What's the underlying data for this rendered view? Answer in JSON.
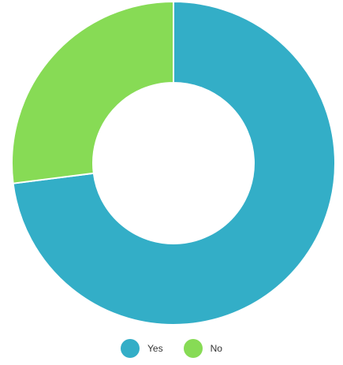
{
  "chart_data": {
    "type": "pie",
    "donut": true,
    "categories": [
      "Yes",
      "No"
    ],
    "values": [
      73,
      27
    ],
    "colors": [
      "#33AEC7",
      "#87DB55"
    ],
    "legend_position": "bottom",
    "title": ""
  },
  "legend": {
    "items": [
      {
        "label": "Yes",
        "color": "#33AEC7"
      },
      {
        "label": "No",
        "color": "#87DB55"
      }
    ]
  }
}
